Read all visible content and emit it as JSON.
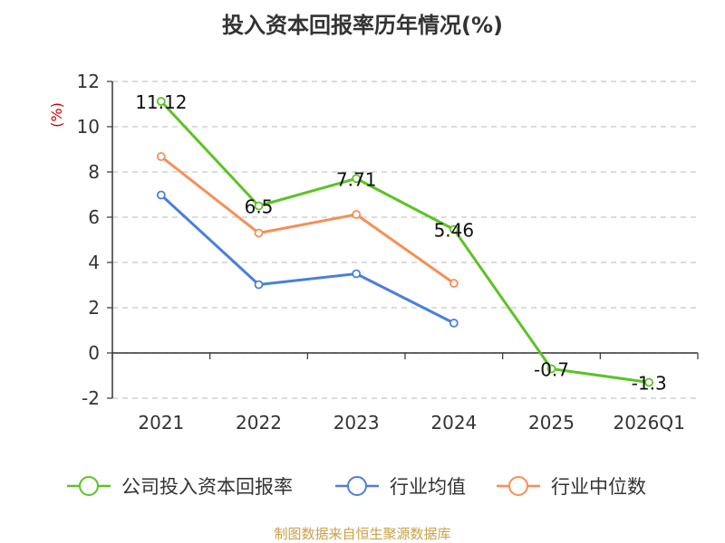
{
  "chart_data": {
    "type": "line",
    "title": "投入资本回报率历年情况(%)",
    "yunit": "(%)",
    "categories": [
      "2021",
      "2022",
      "2023",
      "2024",
      "2025",
      "2026Q1"
    ],
    "ylim": [
      -2,
      12
    ],
    "yticks": [
      -2,
      0,
      2,
      4,
      6,
      8,
      10,
      12
    ],
    "grid": true,
    "legend_position": "bottom",
    "series": [
      {
        "name": "公司投入资本回报率",
        "color": "#5cc326",
        "values": [
          11.12,
          6.5,
          7.71,
          5.46,
          -0.7,
          -1.3
        ],
        "labels": [
          "11.12",
          "6.5",
          "7.71",
          "5.46",
          "-0.7",
          "-1.3"
        ]
      },
      {
        "name": "行业均值",
        "color": "#4a7fdb",
        "values": [
          6.98,
          3.02,
          3.5,
          1.32,
          null,
          null
        ]
      },
      {
        "name": "行业中位数",
        "color": "#f78e56",
        "values": [
          8.68,
          5.3,
          6.12,
          3.08,
          null,
          null
        ]
      }
    ],
    "source": "制图数据来自恒生聚源数据库"
  }
}
